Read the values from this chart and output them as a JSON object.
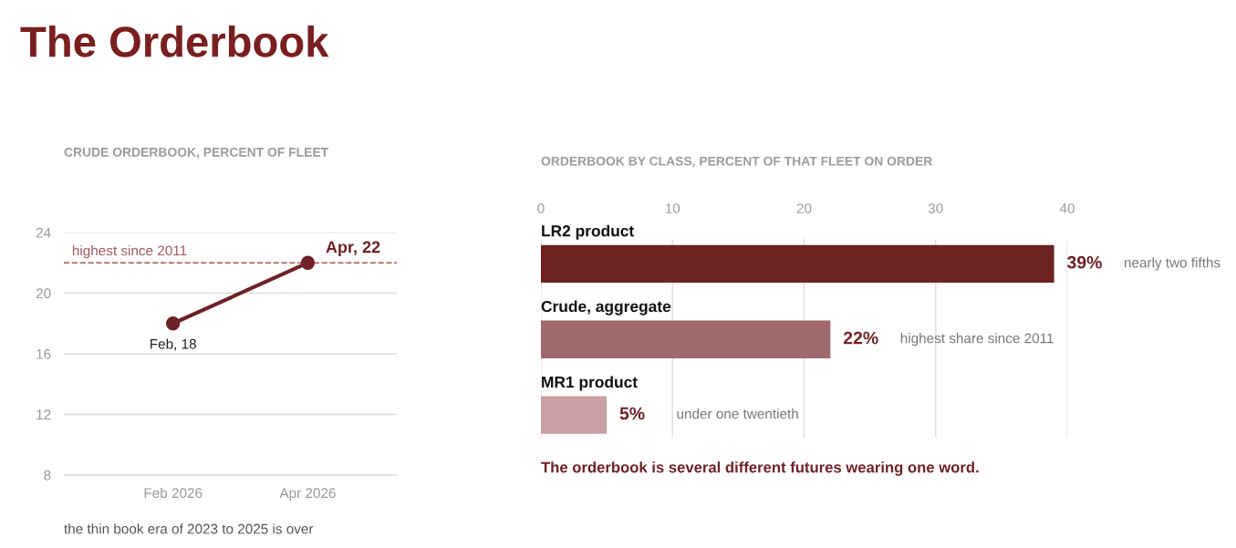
{
  "chart_data": [
    {
      "type": "other",
      "title": "The Orderbook"
    },
    {
      "type": "line",
      "title": "CRUDE ORDERBOOK, PERCENT OF FLEET",
      "categories": [
        "Feb 2026",
        "Apr 2026"
      ],
      "series": [
        {
          "color": "#6e2226",
          "values": [
            18,
            22
          ]
        }
      ],
      "ylim": [
        8,
        24
      ],
      "yticks": [
        8,
        12,
        16,
        20,
        24
      ],
      "grid": "y",
      "marker": "circle",
      "line_style": "solid",
      "legend": false,
      "ref_lines": [
        {
          "axis": "y",
          "value": 22,
          "label": "highest since 2011",
          "color": "#a0585c",
          "line_style": "dashed"
        }
      ],
      "annotations": [
        {
          "text": "Feb, 18",
          "x": "Feb 2026",
          "y": 18
        },
        {
          "text": "Apr, 22",
          "x": "Apr 2026",
          "y": 22
        },
        "the thin book era of 2023 to 2025 is over"
      ]
    },
    {
      "type": "bar",
      "orientation": "horizontal",
      "title": "ORDERBOOK BY CLASS, PERCENT OF THAT FLEET ON ORDER",
      "categories": [
        "LR2 product",
        "Crude, aggregate",
        "MR1 product"
      ],
      "values": [
        39,
        22,
        5
      ],
      "colors": [
        "#6e2222",
        "#a0696b",
        "#c9a1a5"
      ],
      "value_labels": [
        "39%",
        "22%",
        "5%"
      ],
      "xlim": [
        0,
        40
      ],
      "xticks": [
        0,
        10,
        20,
        30,
        40
      ],
      "grid": "x",
      "legend": false,
      "annotations": [
        "nearly two fifths",
        "highest share since 2011",
        "under one twentieth",
        "The orderbook is several different futures wearing one word."
      ]
    }
  ]
}
